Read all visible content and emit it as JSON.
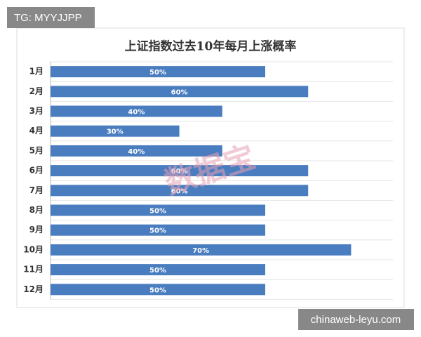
{
  "chart_data": {
    "type": "bar",
    "orientation": "horizontal",
    "title": "上证指数过去10年每月上涨概率",
    "categories": [
      "1月",
      "2月",
      "3月",
      "4月",
      "5月",
      "6月",
      "7月",
      "8月",
      "9月",
      "10月",
      "11月",
      "12月"
    ],
    "values": [
      50,
      60,
      40,
      30,
      40,
      60,
      60,
      50,
      50,
      70,
      50,
      50
    ],
    "value_labels": [
      "50%",
      "60%",
      "40%",
      "30%",
      "40%",
      "60%",
      "60%",
      "50%",
      "50%",
      "70%",
      "50%",
      "50%"
    ],
    "color": "#4a7dbf",
    "watermark": "数据宝"
  },
  "overlay": {
    "top_left": "TG: MYYJJPP",
    "bottom_right": "chinaweb-leyu.com"
  }
}
